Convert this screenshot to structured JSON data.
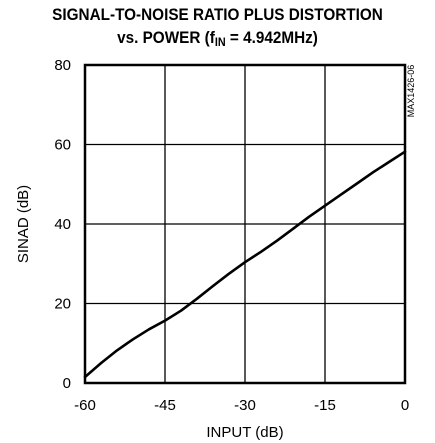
{
  "chart_data": {
    "type": "line",
    "title_line1": "SIGNAL-TO-NOISE RATIO PLUS DISTORTION",
    "title_line2_prefix": "vs. POWER (f",
    "title_line2_sub": "IN",
    "title_line2_suffix": " = 4.942MHz)",
    "xlabel": "INPUT (dB)",
    "ylabel": "SINAD (dB)",
    "figure_code": "MAX1426-06",
    "xlim": [
      -60,
      0
    ],
    "ylim": [
      0,
      80
    ],
    "x_ticks": [
      -60,
      -45,
      -30,
      -15,
      0
    ],
    "x_tick_labels": [
      "-60",
      "-45",
      "-30",
      "-15",
      "0"
    ],
    "y_ticks": [
      0,
      20,
      40,
      60,
      80
    ],
    "y_tick_labels": [
      "0",
      "20",
      "40",
      "60",
      "80"
    ],
    "grid": true,
    "series": [
      {
        "color": "#000000",
        "x": [
          -60,
          -57,
          -54,
          -51,
          -48,
          -45,
          -42,
          -39,
          -36,
          -33,
          -30,
          -27,
          -24,
          -21,
          -18,
          -15,
          -12,
          -9,
          -6,
          -3,
          0
        ],
        "y": [
          1.5,
          5,
          8.2,
          11,
          13.5,
          15.7,
          18.2,
          21.2,
          24.4,
          27.5,
          30.4,
          33,
          35.8,
          38.8,
          41.8,
          44.6,
          47.4,
          50.2,
          53,
          55.6,
          58.2
        ]
      }
    ]
  }
}
